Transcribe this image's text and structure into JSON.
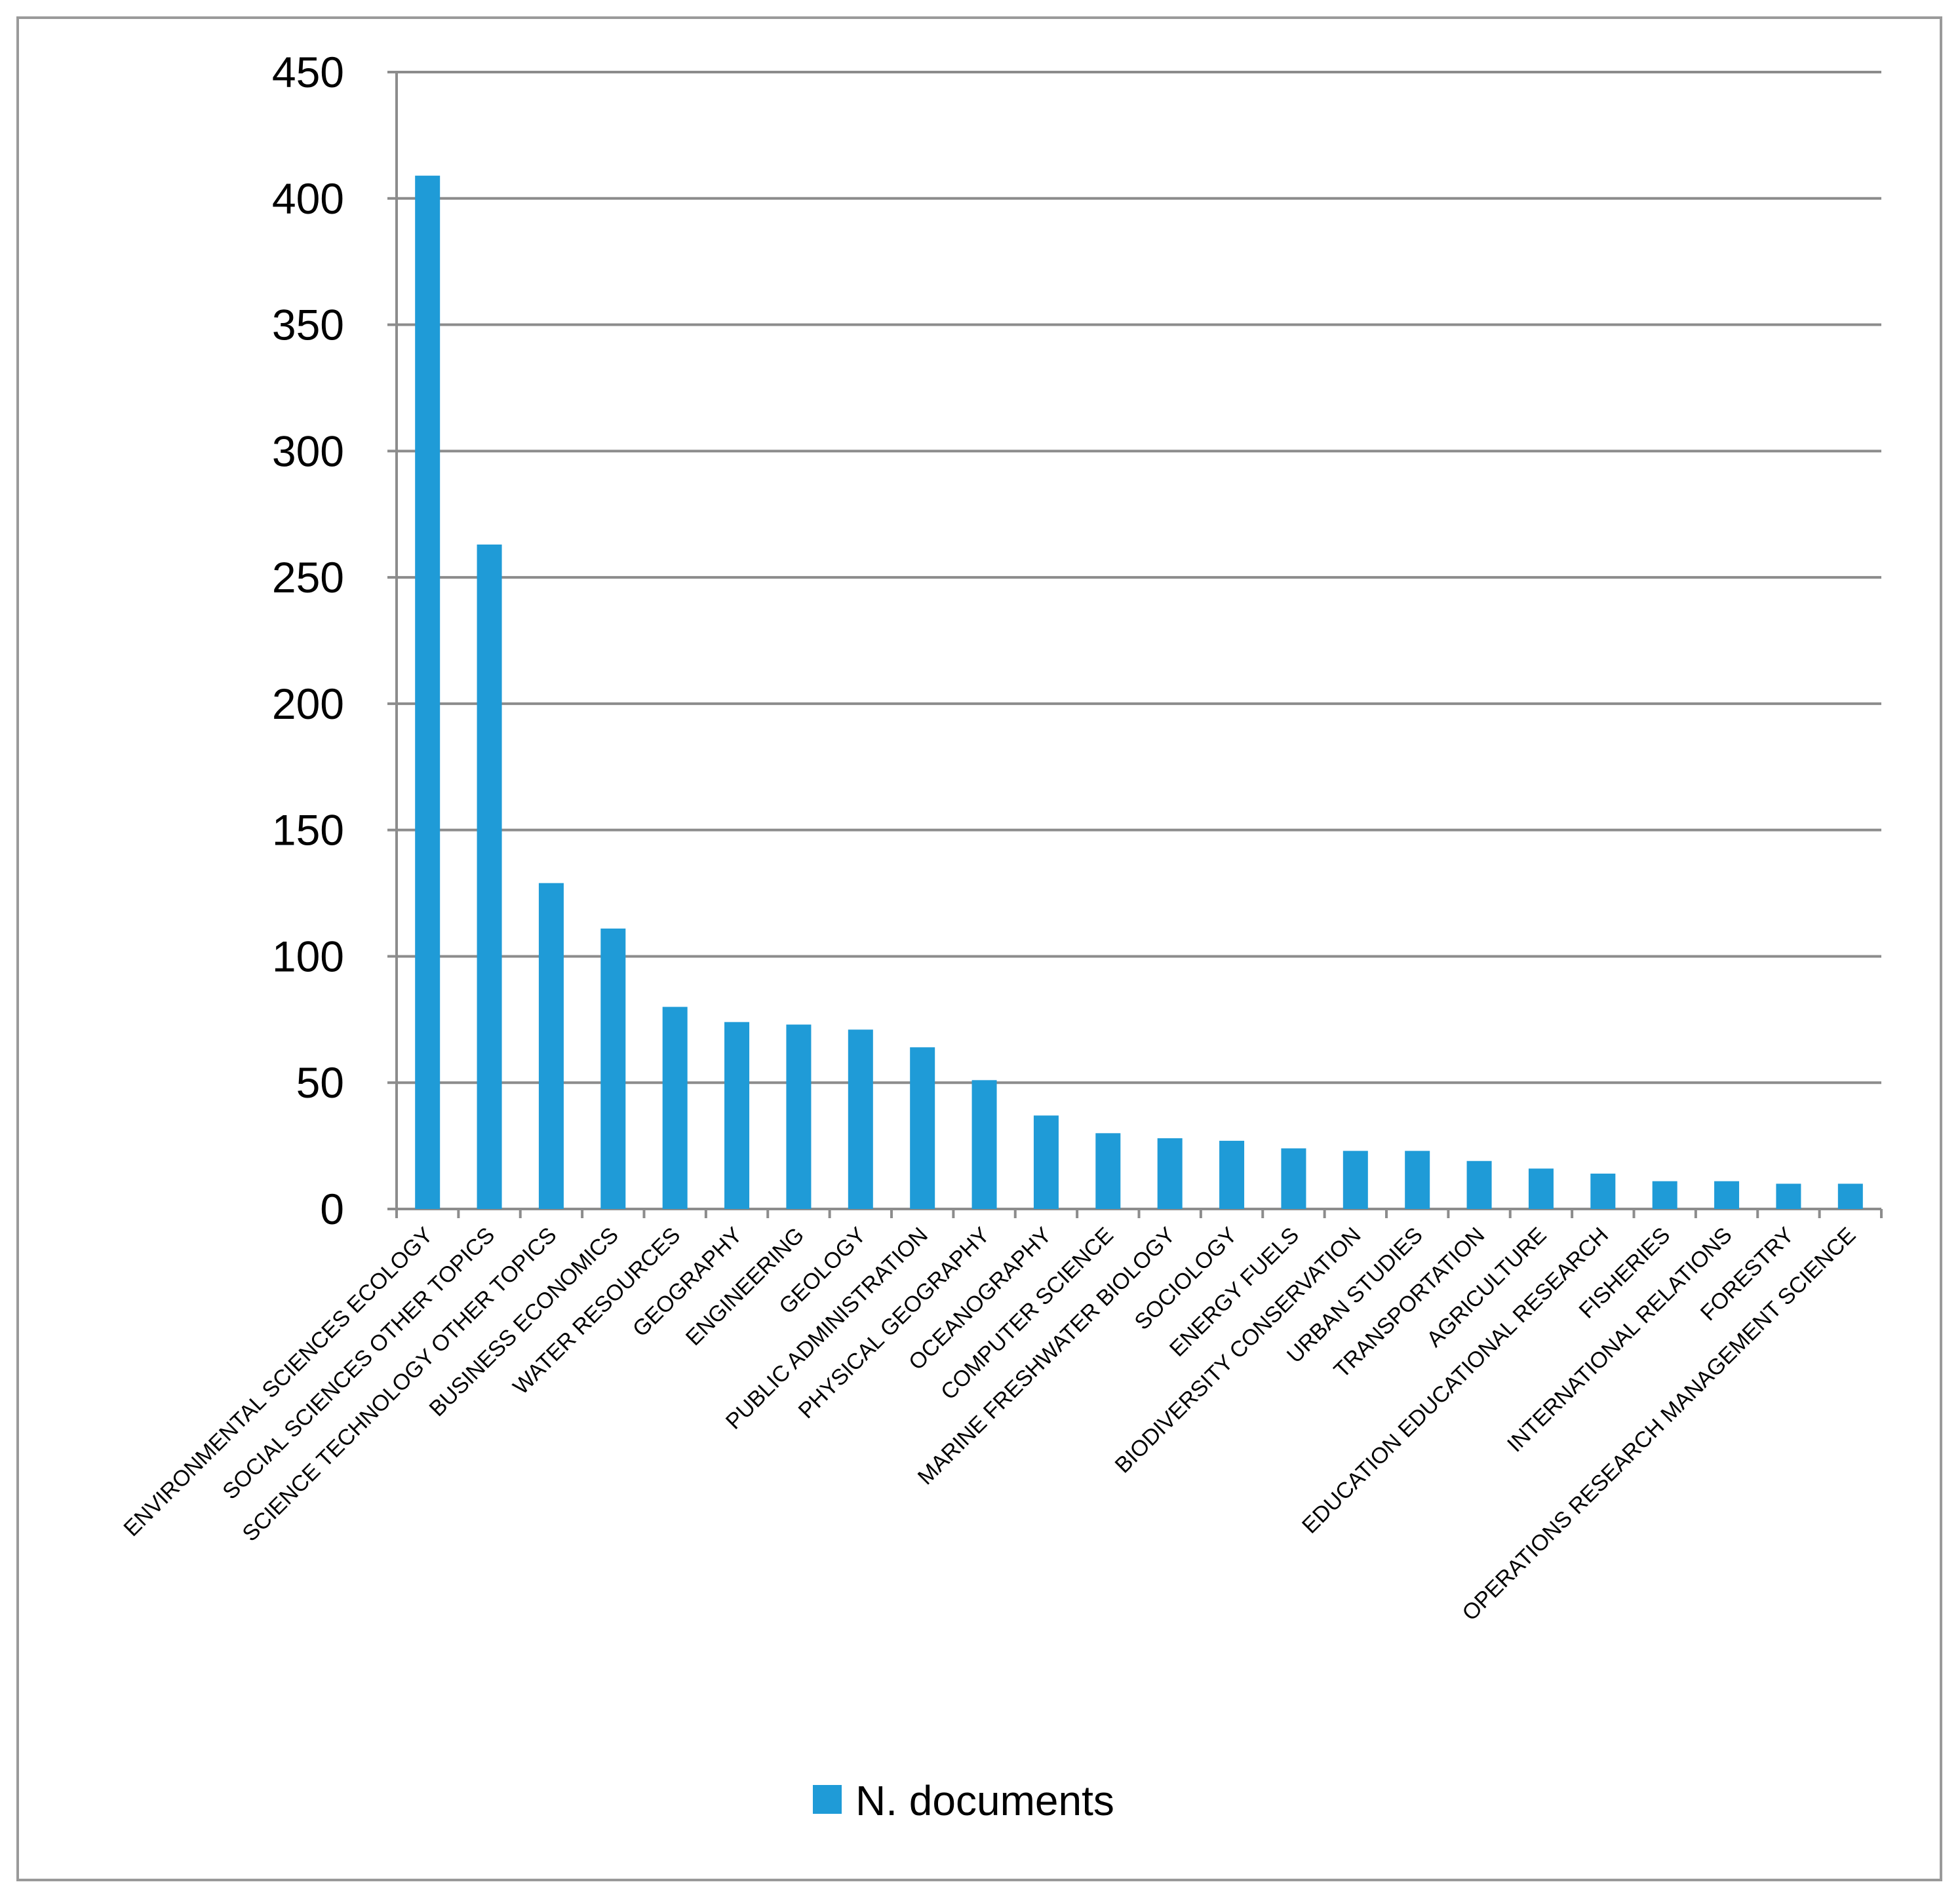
{
  "chart_data": {
    "type": "bar",
    "categories": [
      "ENVIRONMENTAL SCIENCES ECOLOGY",
      "SOCIAL SCIENCES OTHER TOPICS",
      "SCIENCE TECHNOLOGY OTHER TOPICS",
      "BUSINESS ECONOMICS",
      "WATER RESOURCES",
      "GEOGRAPHY",
      "ENGINEERING",
      "GEOLOGY",
      "PUBLIC ADMINISTRATION",
      "PHYSICAL GEOGRAPHY",
      "OCEANOGRAPHY",
      "COMPUTER SCIENCE",
      "MARINE FRESHWATER BIOLOGY",
      "SOCIOLOGY",
      "ENERGY FUELS",
      "BIODIVERSITY CONSERVATION",
      "URBAN STUDIES",
      "TRANSPORTATION",
      "AGRICULTURE",
      "EDUCATION EDUCATIONAL RESEARCH",
      "FISHERIES",
      "INTERNATIONAL RELATIONS",
      "FORESTRY",
      "OPERATIONS RESEARCH MANAGEMENT SCIENCE"
    ],
    "series": [
      {
        "name": "N. documents",
        "values": [
          409,
          263,
          129,
          111,
          80,
          74,
          73,
          71,
          64,
          51,
          37,
          30,
          28,
          27,
          24,
          23,
          23,
          19,
          16,
          14,
          11,
          11,
          10,
          10
        ],
        "color": "#1F9BD7"
      }
    ],
    "y_ticks": [
      "0",
      "50",
      "100",
      "150",
      "200",
      "250",
      "300",
      "350",
      "400",
      "450"
    ],
    "ylim": [
      0,
      450
    ],
    "grid": true,
    "legend_position": "bottom",
    "title": "",
    "xlabel": "",
    "ylabel": ""
  },
  "colors": {
    "bar": "#1F9BD7",
    "gridline": "#8c8c8c",
    "axis": "#8c8c8c",
    "frame": "#9a9a9a"
  }
}
